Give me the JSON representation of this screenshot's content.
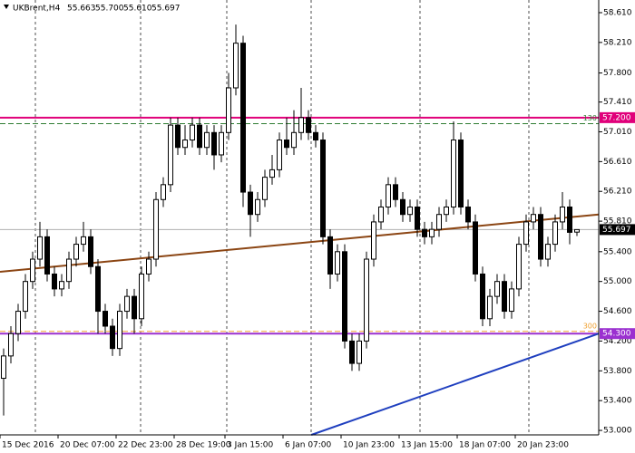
{
  "chart_data": {
    "type": "candlestick",
    "symbol": "UKBrent,H4",
    "header_values": [
      "55.663",
      "55.700",
      "55.610",
      "55.697"
    ],
    "categories": [
      "15 Dec 2016",
      null,
      null,
      null,
      null,
      null,
      null,
      null,
      "20 Dec 07:00",
      null,
      null,
      null,
      null,
      null,
      null,
      null,
      "22 Dec 23:00",
      null,
      null,
      null,
      null,
      null,
      null,
      null,
      "28 Dec 19:00",
      null,
      null,
      null,
      null,
      null,
      null,
      "3 Jan 15:00",
      null,
      null,
      null,
      null,
      null,
      null,
      null,
      "6 Jan 07:00",
      null,
      null,
      null,
      null,
      null,
      null,
      null,
      "10 Jan 23:00",
      null,
      null,
      null,
      null,
      null,
      null,
      null,
      "13 Jan 15:00",
      null,
      null,
      null,
      null,
      null,
      null,
      null,
      "18 Jan 07:00",
      null,
      null,
      null,
      null,
      null,
      null,
      null,
      "20 Jan 23:00",
      null,
      null,
      null,
      null,
      null,
      null,
      null,
      null
    ],
    "open": [
      53.7,
      54.0,
      54.3,
      54.6,
      55.0,
      55.3,
      55.6,
      55.1,
      54.9,
      55.0,
      55.3,
      55.5,
      55.6,
      55.2,
      54.6,
      54.4,
      54.1,
      54.6,
      54.8,
      54.5,
      55.1,
      55.3,
      56.1,
      56.3,
      57.1,
      56.8,
      56.9,
      57.1,
      56.8,
      57.0,
      56.7,
      57.0,
      57.6,
      58.2,
      56.2,
      55.9,
      56.1,
      56.4,
      56.5,
      56.9,
      56.8,
      57.0,
      57.2,
      57.0,
      56.9,
      55.6,
      55.1,
      55.4,
      54.2,
      53.9,
      54.2,
      55.3,
      55.8,
      56.0,
      56.3,
      56.1,
      55.9,
      56.0,
      55.7,
      55.6,
      55.7,
      55.9,
      56.0,
      56.9,
      56.0,
      55.8,
      55.1,
      54.5,
      54.8,
      55.0,
      54.6,
      54.9,
      55.5,
      55.8,
      55.9,
      55.3,
      55.5,
      55.8,
      56.0,
      55.663
    ],
    "high": [
      54.1,
      54.4,
      54.7,
      55.1,
      55.4,
      55.8,
      55.7,
      55.2,
      55.1,
      55.4,
      55.6,
      55.8,
      55.7,
      55.3,
      54.7,
      54.5,
      54.7,
      54.9,
      54.9,
      55.2,
      55.4,
      56.2,
      56.4,
      57.2,
      57.2,
      57.1,
      57.2,
      57.2,
      57.1,
      57.1,
      57.1,
      57.8,
      58.45,
      58.3,
      56.3,
      56.2,
      56.5,
      56.7,
      57.0,
      57.2,
      57.3,
      57.6,
      57.3,
      57.1,
      57.0,
      55.7,
      55.5,
      55.5,
      54.3,
      54.3,
      55.4,
      55.9,
      56.1,
      56.4,
      56.4,
      56.2,
      56.1,
      56.1,
      55.8,
      55.8,
      56.0,
      56.1,
      57.15,
      57.0,
      56.1,
      55.9,
      55.2,
      54.9,
      55.1,
      55.1,
      55.0,
      55.6,
      55.9,
      56.0,
      56.0,
      55.6,
      55.9,
      56.2,
      56.1,
      55.7
    ],
    "low": [
      53.2,
      53.9,
      54.2,
      54.5,
      54.9,
      55.2,
      55.0,
      54.8,
      54.8,
      54.9,
      55.2,
      55.4,
      55.1,
      54.3,
      54.3,
      54.0,
      54.0,
      54.5,
      54.3,
      54.4,
      55.0,
      55.2,
      56.0,
      56.2,
      56.7,
      56.7,
      56.8,
      56.7,
      56.7,
      56.5,
      56.6,
      56.9,
      57.5,
      56.0,
      55.6,
      55.8,
      56.0,
      56.3,
      56.4,
      56.7,
      56.7,
      56.9,
      56.9,
      56.8,
      55.5,
      54.9,
      55.0,
      54.1,
      53.8,
      53.8,
      54.1,
      55.2,
      55.7,
      55.9,
      56.0,
      55.8,
      55.8,
      55.6,
      55.5,
      55.5,
      55.6,
      55.8,
      55.9,
      55.9,
      55.7,
      55.0,
      54.4,
      54.4,
      54.7,
      54.5,
      54.5,
      54.8,
      55.4,
      55.7,
      55.2,
      55.2,
      55.4,
      55.7,
      55.5,
      55.61
    ],
    "close": [
      54.0,
      54.3,
      54.6,
      55.0,
      55.3,
      55.6,
      55.1,
      54.9,
      55.0,
      55.3,
      55.5,
      55.6,
      55.2,
      54.6,
      54.4,
      54.1,
      54.6,
      54.8,
      54.5,
      55.1,
      55.3,
      56.1,
      56.3,
      57.1,
      56.8,
      56.9,
      57.1,
      56.8,
      57.0,
      56.7,
      57.0,
      57.6,
      58.2,
      56.2,
      55.9,
      56.1,
      56.4,
      56.5,
      56.9,
      56.8,
      57.0,
      57.2,
      57.0,
      56.9,
      55.6,
      55.1,
      55.4,
      54.2,
      53.9,
      54.2,
      55.3,
      55.8,
      56.0,
      56.3,
      56.1,
      55.9,
      56.0,
      55.7,
      55.6,
      55.7,
      55.9,
      56.0,
      56.9,
      56.0,
      55.8,
      55.1,
      54.5,
      54.8,
      55.0,
      54.6,
      54.9,
      55.5,
      55.8,
      55.9,
      55.3,
      55.5,
      55.8,
      56.0,
      55.66,
      55.697
    ],
    "up_color": "#ffffff",
    "down_color": "#000000",
    "ylim": [
      52.94,
      58.78
    ],
    "yticks": [
      {
        "value": 58.61,
        "label": "58.610"
      },
      {
        "value": 58.21,
        "label": "58.210"
      },
      {
        "value": 57.8,
        "label": "57.800"
      },
      {
        "value": 57.41,
        "label": "57.410"
      },
      {
        "value": 57.01,
        "label": "57.010"
      },
      {
        "value": 56.61,
        "label": "56.610"
      },
      {
        "value": 56.21,
        "label": "56.210"
      },
      {
        "value": 55.81,
        "label": "55.810"
      },
      {
        "value": 55.4,
        "label": "55.400"
      },
      {
        "value": 55,
        "label": "55.000"
      },
      {
        "value": 54.6,
        "label": "54.600"
      },
      {
        "value": 54.2,
        "label": "54.200"
      },
      {
        "value": 53.8,
        "label": "53.800"
      },
      {
        "value": 53.4,
        "label": "53.400"
      },
      {
        "value": 53,
        "label": "53.000"
      }
    ],
    "levels": [
      {
        "value": 55.697,
        "label": "55.697",
        "color": "#000000",
        "line": "#b0b0b0",
        "style": "solid"
      },
      {
        "value": 57.12,
        "tag": "130",
        "color": "#2e7d32",
        "style": "dashed"
      },
      {
        "value": 57.2,
        "label": "57.200",
        "color": "#e0007a",
        "style": "solid"
      },
      {
        "value": 54.33,
        "tag": "300",
        "color": "#f0a030",
        "style": "dashed"
      },
      {
        "value": 54.3,
        "label": "54.300",
        "color": "#9b30d0",
        "style": "solid"
      }
    ],
    "trendlines": [
      {
        "color": "#8b4513",
        "points": [
          [
            -0.5,
            55.13
          ],
          [
            82,
            55.9
          ]
        ]
      },
      {
        "color": "#1f3fbf",
        "points": [
          [
            42.4,
            52.94
          ],
          [
            82,
            54.3
          ]
        ]
      }
    ]
  }
}
